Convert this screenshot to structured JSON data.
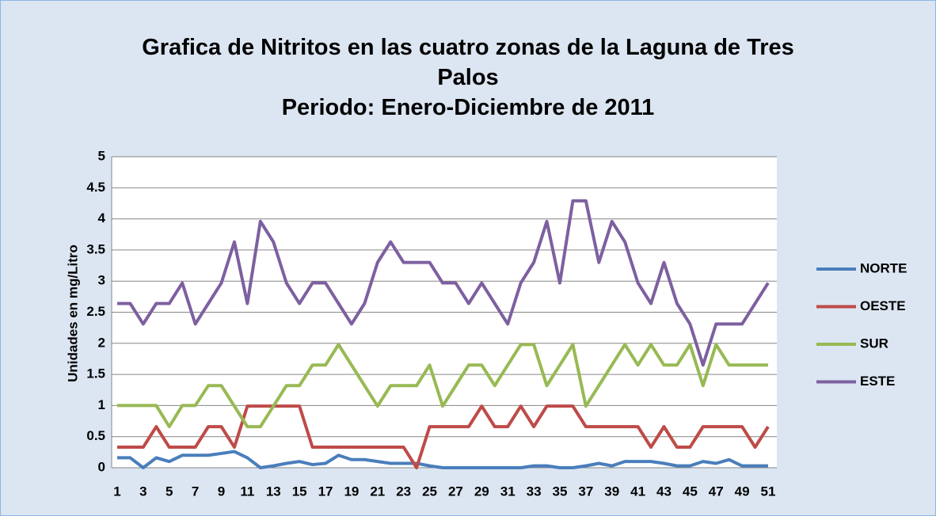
{
  "chart_data": {
    "type": "line",
    "title": "Grafica de Nitritos en las cuatro zonas de la Laguna de Tres Palos",
    "subtitle": "Periodo: Enero-Diciembre de 2011",
    "y_label": "Unidades en mg/Litro",
    "categories": [
      "1",
      null,
      "3",
      null,
      "5",
      null,
      "7",
      null,
      "9",
      null,
      "11",
      null,
      "13",
      null,
      "15",
      null,
      "17",
      null,
      "19",
      null,
      "21",
      null,
      "23",
      null,
      "25",
      null,
      "27",
      null,
      "29",
      null,
      "31",
      null,
      "33",
      null,
      "35",
      null,
      "37",
      null,
      "39",
      null,
      "41",
      null,
      "43",
      null,
      "45",
      null,
      "47",
      null,
      "49",
      null,
      "51"
    ],
    "ylim": [
      0,
      5
    ],
    "yticks": [
      0,
      0.5,
      1,
      1.5,
      2,
      2.5,
      3,
      3.5,
      4,
      4.5,
      5
    ],
    "grid": true,
    "legend": "right",
    "series": [
      {
        "name": "NORTE",
        "color": "#4a7ebb",
        "values": [
          0.16,
          0.16,
          0,
          0.16,
          0.1,
          0.2,
          0.2,
          0.2,
          0.23,
          0.26,
          0.16,
          0,
          0.03,
          0.07,
          0.1,
          0.05,
          0.07,
          0.2,
          0.13,
          0.13,
          0.1,
          0.07,
          0.07,
          0.07,
          0.03,
          0,
          0,
          0,
          0,
          0,
          0,
          0,
          0.03,
          0.03,
          0,
          0,
          0.03,
          0.07,
          0.03,
          0.1,
          0.1,
          0.1,
          0.07,
          0.03,
          0.03,
          0.1,
          0.07,
          0.13,
          0.03,
          0.03,
          0.03
        ]
      },
      {
        "name": "OESTE",
        "color": "#be4b48",
        "values": [
          0.33,
          0.33,
          0.33,
          0.66,
          0.33,
          0.33,
          0.33,
          0.66,
          0.66,
          0.33,
          0.99,
          0.99,
          0.99,
          0.99,
          0.99,
          0.33,
          0.33,
          0.33,
          0.33,
          0.33,
          0.33,
          0.33,
          0.33,
          0,
          0.66,
          0.66,
          0.66,
          0.66,
          0.99,
          0.66,
          0.66,
          0.99,
          0.66,
          0.99,
          0.99,
          0.99,
          0.66,
          0.66,
          0.66,
          0.66,
          0.66,
          0.33,
          0.66,
          0.33,
          0.33,
          0.66,
          0.66,
          0.66,
          0.66,
          0.33,
          0.66
        ]
      },
      {
        "name": "SUR",
        "color": "#98b954",
        "values": [
          1,
          1,
          1,
          1,
          0.66,
          1,
          1,
          1.32,
          1.32,
          0.99,
          0.66,
          0.66,
          0.99,
          1.32,
          1.32,
          1.65,
          1.65,
          1.98,
          1.65,
          1.32,
          0.99,
          1.32,
          1.32,
          1.32,
          1.65,
          0.99,
          1.32,
          1.65,
          1.65,
          1.32,
          1.65,
          1.98,
          1.98,
          1.32,
          1.65,
          1.98,
          0.99,
          1.32,
          1.65,
          1.98,
          1.65,
          1.98,
          1.65,
          1.65,
          1.98,
          1.32,
          1.98,
          1.65,
          1.65,
          1.65,
          1.65
        ]
      },
      {
        "name": "ESTE",
        "color": "#7d60a0",
        "values": [
          2.64,
          2.64,
          2.31,
          2.64,
          2.64,
          2.97,
          2.31,
          2.64,
          2.97,
          3.63,
          2.64,
          3.96,
          3.63,
          2.97,
          2.64,
          2.97,
          2.97,
          2.64,
          2.31,
          2.64,
          3.3,
          3.63,
          3.3,
          3.3,
          3.3,
          2.97,
          2.97,
          2.64,
          2.97,
          2.64,
          2.31,
          2.97,
          3.3,
          3.96,
          2.97,
          4.29,
          4.29,
          3.3,
          3.96,
          3.63,
          2.97,
          2.64,
          3.3,
          2.64,
          2.31,
          1.65,
          2.31,
          2.31,
          2.31,
          2.64,
          2.97
        ]
      }
    ]
  }
}
